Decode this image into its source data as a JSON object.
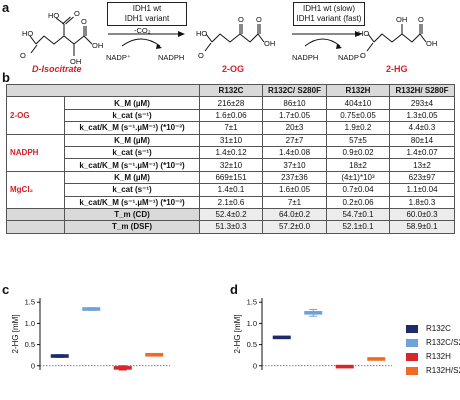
{
  "panels": {
    "a": "a",
    "b": "b",
    "c": "c",
    "d": "d"
  },
  "scheme": {
    "compound1": "D-Isocitrate",
    "compound2": "2-OG",
    "compound3": "2-HG",
    "box1": [
      "IDH1 wt",
      "IDH1 variant"
    ],
    "box2": [
      "IDH1 wt (slow)",
      "IDH1 variant (fast)"
    ],
    "co2": "-CO₂",
    "nadp": "NADP⁺",
    "nadph": "NADPH"
  },
  "table": {
    "columns": [
      "R132C",
      "R132C/ S280F",
      "R132H",
      "R132H/ S280F"
    ],
    "groups": [
      {
        "name": "2-OG",
        "rows": [
          {
            "param": "K_M (µM)",
            "values": [
              "216±28",
              "86±10",
              "404±10",
              "293±4"
            ]
          },
          {
            "param": "k_cat (s⁻¹)",
            "values": [
              "1.6±0.06",
              "1.7±0.05",
              "0.75±0.05",
              "1.3±0.05"
            ]
          },
          {
            "param": "k_cat/K_M (s⁻¹.µM⁻¹) (*10⁻³)",
            "values": [
              "7±1",
              "20±3",
              "1.9±0.2",
              "4.4±0.3"
            ]
          }
        ]
      },
      {
        "name": "NADPH",
        "rows": [
          {
            "param": "K_M (µM)",
            "values": [
              "31±10",
              "27±7",
              "57±5",
              "80±14"
            ]
          },
          {
            "param": "k_cat (s⁻¹)",
            "values": [
              "1.4±0.12",
              "1.4±0.08",
              "0.9±0.02",
              "1.4±0.07"
            ]
          },
          {
            "param": "k_cat/K_M (s⁻¹.µM⁻¹) (*10⁻³)",
            "values": [
              "32±10",
              "37±10",
              "18±2",
              "13±2"
            ]
          }
        ]
      },
      {
        "name": "MgCl₂",
        "rows": [
          {
            "param": "K_M (µM)",
            "values": [
              "669±151",
              "237±36",
              "(4±1)*10³",
              "623±97"
            ]
          },
          {
            "param": "k_cat (s⁻¹)",
            "values": [
              "1.4±0.1",
              "1.6±0.05",
              "0.7±0.04",
              "1.1±0.04"
            ]
          },
          {
            "param": "k_cat/K_M (s⁻¹.µM⁻¹) (*10⁻³)",
            "values": [
              "2.1±0.6",
              "7±1",
              "0.2±0.06",
              "1.8±0.3"
            ]
          }
        ]
      }
    ],
    "tm_rows": [
      {
        "param": "T_m (CD)",
        "values": [
          "52.4±0.2",
          "64.0±0.2",
          "54.7±0.1",
          "60.0±0.3"
        ]
      },
      {
        "param": "T_m (DSF)",
        "values": [
          "51.3±0.3",
          "57.2±0.0",
          "52.1±0.1",
          "58.9±0.1"
        ]
      }
    ]
  },
  "chart_data": [
    {
      "type": "scatter",
      "panel": "c",
      "ylabel": "2-HG [mM]",
      "ylim": [
        -0.1,
        1.6
      ],
      "yticks": [
        0,
        0.5,
        1.0,
        1.5
      ],
      "ytick_labels": [
        "0",
        "0.5",
        "1.0",
        "1.5"
      ],
      "series": [
        {
          "name": "R132C",
          "mean": 0.23,
          "err": 0.03,
          "color": "#1f2a6b"
        },
        {
          "name": "R132C/S280F",
          "mean": 1.34,
          "err": 0.03,
          "color": "#6fa2d8"
        },
        {
          "name": "R132H",
          "mean": -0.05,
          "err": 0.05,
          "color": "#d8262a"
        },
        {
          "name": "R132H/S280F",
          "mean": 0.26,
          "err": 0.03,
          "color": "#f06a23"
        }
      ]
    },
    {
      "type": "scatter",
      "panel": "d",
      "ylabel": "2-HG [mM]",
      "ylim": [
        -0.1,
        1.6
      ],
      "yticks": [
        0,
        0.5,
        1.0,
        1.5
      ],
      "ytick_labels": [
        "0",
        "0.5",
        "1.0",
        "1.5"
      ],
      "series": [
        {
          "name": "R132C",
          "mean": 0.67,
          "err": 0.02,
          "color": "#1f2a6b"
        },
        {
          "name": "R132C/S280F",
          "mean": 1.25,
          "err": 0.08,
          "color": "#6fa2d8"
        },
        {
          "name": "R132H",
          "mean": -0.02,
          "err": 0.02,
          "color": "#d8262a"
        },
        {
          "name": "R132H/S280F",
          "mean": 0.16,
          "err": 0.01,
          "color": "#f06a23"
        }
      ]
    }
  ],
  "legend": [
    {
      "label": "R132C",
      "color": "#1f2a6b"
    },
    {
      "label": "R132C/S280F",
      "color": "#6fa2d8"
    },
    {
      "label": "R132H",
      "color": "#d8262a"
    },
    {
      "label": "R132H/S280F",
      "color": "#f06a23"
    }
  ]
}
